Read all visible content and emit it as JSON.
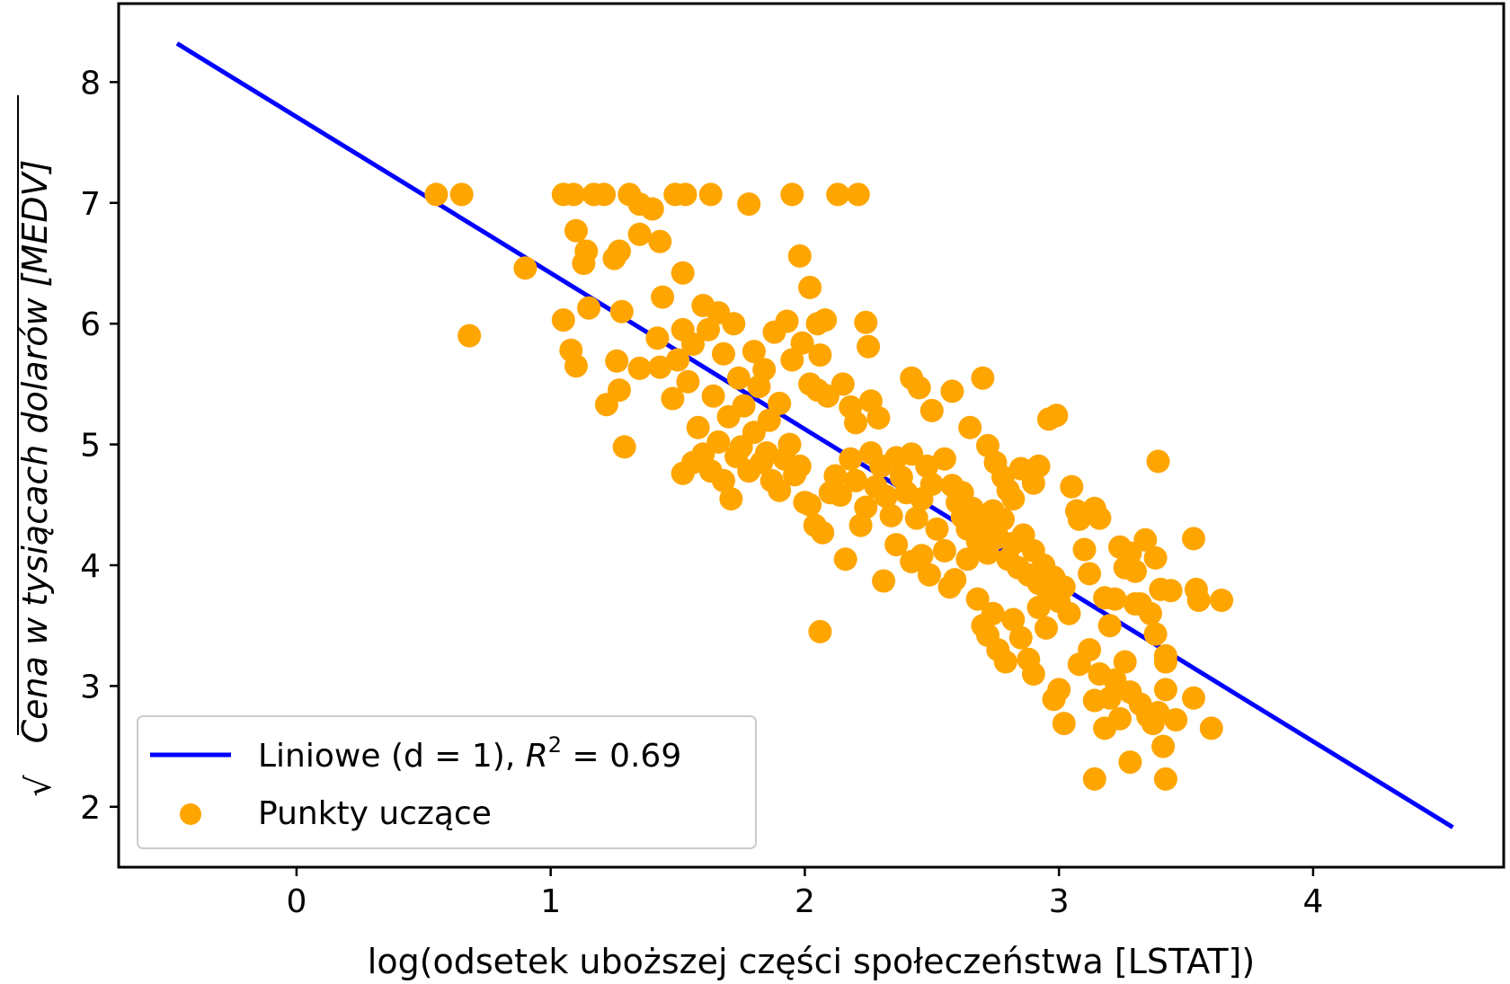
{
  "chart_data": {
    "type": "scatter",
    "title": "",
    "xlabel": "log(odsetek uboższej części społeczeństwa [LSTAT])",
    "ylabel": "Cena w tysiącach dolarów [MEDV]",
    "ylabel_sqrt_symbol": "√",
    "xlim": [
      -0.7,
      4.75
    ],
    "ylim": [
      1.5,
      8.65
    ],
    "xticks": [
      0,
      1,
      2,
      3,
      4
    ],
    "yticks": [
      2,
      3,
      4,
      5,
      6,
      7,
      8
    ],
    "grid": false,
    "legend_position": "lower-left",
    "legend": {
      "line_label_prefix": "Liniowe (d = 1), ",
      "line_label_r2_symbol": "R",
      "line_label_r2_power": "2",
      "line_label_r2_value": " = 0.69",
      "scatter_label": "Punkty uczące"
    },
    "colors": {
      "line": "#0000ff",
      "points": "#ffa500",
      "axes": "#000000"
    },
    "series": [
      {
        "name": "Liniowe (d = 1)",
        "kind": "line",
        "x": [
          -0.47,
          4.55
        ],
        "y": [
          8.32,
          1.83
        ]
      },
      {
        "name": "Punkty uczące",
        "kind": "scatter",
        "points": [
          [
            0.55,
            7.07
          ],
          [
            0.65,
            7.07
          ],
          [
            1.05,
            7.07
          ],
          [
            1.09,
            7.07
          ],
          [
            1.17,
            7.07
          ],
          [
            1.21,
            7.07
          ],
          [
            1.31,
            7.07
          ],
          [
            1.49,
            7.07
          ],
          [
            1.53,
            7.07
          ],
          [
            1.63,
            7.07
          ],
          [
            1.78,
            6.99
          ],
          [
            1.95,
            7.07
          ],
          [
            2.13,
            7.07
          ],
          [
            2.21,
            7.07
          ],
          [
            0.68,
            5.9
          ],
          [
            0.9,
            6.46
          ],
          [
            1.1,
            6.77
          ],
          [
            1.14,
            6.6
          ],
          [
            1.13,
            6.5
          ],
          [
            1.25,
            6.54
          ],
          [
            1.27,
            6.6
          ],
          [
            1.35,
            6.74
          ],
          [
            1.4,
            6.95
          ],
          [
            1.35,
            6.99
          ],
          [
            1.43,
            6.68
          ],
          [
            1.05,
            6.03
          ],
          [
            1.08,
            5.78
          ],
          [
            1.1,
            5.65
          ],
          [
            1.15,
            6.13
          ],
          [
            1.22,
            5.33
          ],
          [
            1.26,
            5.69
          ],
          [
            1.27,
            5.45
          ],
          [
            1.28,
            6.1
          ],
          [
            1.29,
            4.98
          ],
          [
            1.35,
            5.63
          ],
          [
            1.42,
            5.88
          ],
          [
            1.43,
            5.64
          ],
          [
            1.44,
            6.22
          ],
          [
            1.52,
            6.42
          ],
          [
            1.48,
            5.38
          ],
          [
            1.5,
            5.7
          ],
          [
            1.52,
            5.95
          ],
          [
            1.54,
            5.52
          ],
          [
            1.56,
            5.83
          ],
          [
            1.58,
            5.14
          ],
          [
            1.6,
            6.15
          ],
          [
            1.62,
            5.95
          ],
          [
            1.64,
            5.4
          ],
          [
            1.66,
            6.09
          ],
          [
            1.68,
            5.75
          ],
          [
            1.7,
            5.23
          ],
          [
            1.72,
            6.0
          ],
          [
            1.74,
            5.55
          ],
          [
            1.76,
            5.32
          ],
          [
            1.8,
            5.77
          ],
          [
            1.82,
            5.48
          ],
          [
            1.84,
            5.62
          ],
          [
            1.86,
            5.2
          ],
          [
            1.88,
            5.93
          ],
          [
            1.9,
            5.34
          ],
          [
            1.93,
            6.02
          ],
          [
            1.95,
            5.7
          ],
          [
            1.52,
            4.76
          ],
          [
            1.56,
            4.85
          ],
          [
            1.6,
            4.92
          ],
          [
            1.63,
            4.78
          ],
          [
            1.66,
            5.02
          ],
          [
            1.68,
            4.7
          ],
          [
            1.71,
            4.55
          ],
          [
            1.73,
            4.9
          ],
          [
            1.75,
            4.98
          ],
          [
            1.78,
            4.78
          ],
          [
            1.8,
            5.1
          ],
          [
            1.83,
            4.85
          ],
          [
            1.85,
            4.93
          ],
          [
            1.87,
            4.7
          ],
          [
            1.9,
            4.62
          ],
          [
            1.92,
            4.88
          ],
          [
            1.94,
            5.0
          ],
          [
            1.96,
            4.75
          ],
          [
            1.98,
            4.82
          ],
          [
            2.0,
            4.52
          ],
          [
            1.98,
            6.56
          ],
          [
            2.02,
            6.3
          ],
          [
            1.99,
            5.84
          ],
          [
            2.05,
            6.0
          ],
          [
            2.08,
            6.03
          ],
          [
            2.06,
            5.74
          ],
          [
            2.02,
            5.5
          ],
          [
            2.05,
            5.45
          ],
          [
            2.09,
            5.4
          ],
          [
            2.15,
            5.5
          ],
          [
            2.18,
            5.31
          ],
          [
            2.2,
            5.18
          ],
          [
            2.24,
            6.01
          ],
          [
            2.25,
            5.81
          ],
          [
            2.26,
            5.36
          ],
          [
            2.29,
            5.22
          ],
          [
            2.02,
            4.5
          ],
          [
            2.04,
            4.33
          ],
          [
            2.07,
            4.27
          ],
          [
            2.1,
            4.6
          ],
          [
            2.12,
            4.74
          ],
          [
            2.14,
            4.58
          ],
          [
            2.16,
            4.05
          ],
          [
            2.18,
            4.88
          ],
          [
            2.2,
            4.7
          ],
          [
            2.22,
            4.33
          ],
          [
            2.24,
            4.48
          ],
          [
            2.26,
            4.93
          ],
          [
            2.28,
            4.65
          ],
          [
            2.3,
            4.82
          ],
          [
            2.32,
            4.57
          ],
          [
            2.34,
            4.41
          ],
          [
            2.36,
            4.89
          ],
          [
            2.38,
            4.73
          ],
          [
            2.4,
            4.6
          ],
          [
            2.42,
            4.92
          ],
          [
            2.44,
            4.39
          ],
          [
            2.46,
            4.55
          ],
          [
            2.48,
            4.82
          ],
          [
            2.5,
            4.67
          ],
          [
            2.06,
            3.45
          ],
          [
            2.31,
            3.87
          ],
          [
            2.36,
            4.17
          ],
          [
            2.42,
            4.03
          ],
          [
            2.46,
            4.08
          ],
          [
            2.49,
            3.92
          ],
          [
            2.52,
            4.3
          ],
          [
            2.55,
            4.12
          ],
          [
            2.57,
            3.82
          ],
          [
            2.59,
            3.88
          ],
          [
            2.62,
            4.4
          ],
          [
            2.64,
            4.05
          ],
          [
            2.42,
            5.55
          ],
          [
            2.45,
            5.47
          ],
          [
            2.5,
            5.28
          ],
          [
            2.58,
            5.44
          ],
          [
            2.65,
            5.14
          ],
          [
            2.7,
            5.55
          ],
          [
            2.72,
            4.99
          ],
          [
            2.75,
            4.85
          ],
          [
            2.78,
            4.73
          ],
          [
            2.8,
            4.62
          ],
          [
            2.82,
            4.55
          ],
          [
            2.85,
            4.8
          ],
          [
            2.88,
            4.78
          ],
          [
            2.9,
            4.68
          ],
          [
            2.92,
            4.82
          ],
          [
            2.96,
            5.21
          ],
          [
            2.99,
            5.24
          ],
          [
            2.55,
            4.88
          ],
          [
            2.58,
            4.66
          ],
          [
            2.6,
            4.52
          ],
          [
            2.62,
            4.6
          ],
          [
            2.64,
            4.3
          ],
          [
            2.66,
            4.47
          ],
          [
            2.68,
            4.2
          ],
          [
            2.7,
            4.35
          ],
          [
            2.72,
            4.1
          ],
          [
            2.74,
            4.45
          ],
          [
            2.76,
            4.23
          ],
          [
            2.78,
            4.38
          ],
          [
            2.8,
            4.05
          ],
          [
            2.82,
            4.18
          ],
          [
            2.84,
            3.98
          ],
          [
            2.86,
            4.25
          ],
          [
            2.88,
            3.92
          ],
          [
            2.9,
            4.12
          ],
          [
            2.92,
            3.85
          ],
          [
            2.94,
            4.0
          ],
          [
            2.96,
            3.76
          ],
          [
            2.98,
            3.9
          ],
          [
            3.0,
            3.7
          ],
          [
            3.02,
            3.82
          ],
          [
            3.04,
            3.6
          ],
          [
            2.68,
            3.72
          ],
          [
            2.7,
            3.5
          ],
          [
            2.72,
            3.42
          ],
          [
            2.74,
            3.6
          ],
          [
            2.76,
            3.3
          ],
          [
            2.79,
            3.2
          ],
          [
            2.82,
            3.55
          ],
          [
            2.85,
            3.4
          ],
          [
            2.88,
            3.22
          ],
          [
            2.9,
            3.1
          ],
          [
            2.92,
            3.65
          ],
          [
            2.95,
            3.48
          ],
          [
            3.05,
            4.65
          ],
          [
            3.07,
            4.45
          ],
          [
            3.08,
            4.38
          ],
          [
            3.1,
            4.13
          ],
          [
            3.12,
            3.93
          ],
          [
            3.14,
            4.47
          ],
          [
            3.16,
            4.39
          ],
          [
            3.18,
            3.73
          ],
          [
            3.2,
            3.5
          ],
          [
            3.22,
            3.72
          ],
          [
            3.24,
            4.15
          ],
          [
            3.26,
            3.98
          ],
          [
            3.28,
            4.1
          ],
          [
            3.3,
            3.95
          ],
          [
            3.32,
            3.68
          ],
          [
            3.34,
            4.21
          ],
          [
            3.36,
            3.6
          ],
          [
            3.38,
            4.06
          ],
          [
            3.4,
            3.8
          ],
          [
            3.42,
            3.25
          ],
          [
            3.44,
            3.79
          ],
          [
            3.38,
            3.43
          ],
          [
            3.39,
            4.86
          ],
          [
            2.98,
            2.89
          ],
          [
            3.0,
            2.97
          ],
          [
            3.02,
            2.69
          ],
          [
            3.08,
            3.18
          ],
          [
            3.12,
            3.3
          ],
          [
            3.14,
            2.88
          ],
          [
            3.16,
            3.1
          ],
          [
            3.18,
            2.65
          ],
          [
            3.2,
            2.9
          ],
          [
            3.22,
            3.05
          ],
          [
            3.24,
            2.73
          ],
          [
            3.26,
            3.2
          ],
          [
            3.28,
            2.95
          ],
          [
            3.32,
            2.85
          ],
          [
            3.35,
            2.75
          ],
          [
            3.37,
            2.69
          ],
          [
            3.39,
            2.78
          ],
          [
            3.41,
            2.5
          ],
          [
            3.42,
            2.97
          ],
          [
            3.46,
            2.72
          ],
          [
            3.28,
            2.37
          ],
          [
            3.14,
            2.23
          ],
          [
            3.42,
            2.23
          ],
          [
            3.53,
            4.22
          ],
          [
            3.54,
            3.8
          ],
          [
            3.55,
            3.71
          ],
          [
            3.64,
            3.71
          ],
          [
            3.53,
            2.9
          ],
          [
            3.6,
            2.65
          ],
          [
            3.42,
            3.2
          ],
          [
            3.3,
            3.68
          ]
        ]
      }
    ]
  }
}
